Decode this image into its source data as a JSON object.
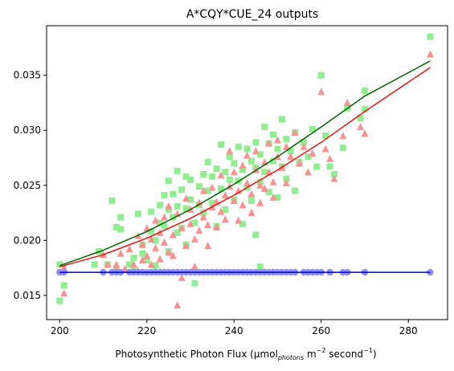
{
  "chart_data": {
    "type": "scatter",
    "title": "A*CQY*CUE_24 outputs",
    "xlabel": {
      "prefix": "Photosynthetic Photon Flux (μmol",
      "subscript": "photons",
      "middle": " m",
      "exponent1": "−2",
      "suffix": " second",
      "exponent2": "−1",
      "close": ")"
    },
    "ylabel": "",
    "xlim": [
      197,
      289
    ],
    "ylim": [
      0.0128,
      0.0395
    ],
    "xticks": [
      200,
      220,
      240,
      260,
      280
    ],
    "yticks": [
      0.015,
      0.02,
      0.025,
      0.03,
      0.035
    ],
    "ytick_labels": [
      "0.015",
      "0.020",
      "0.025",
      "0.030",
      "0.035"
    ],
    "grid": false,
    "series": [
      {
        "marker": "square",
        "color": "#90ee90",
        "points": [
          [
            200,
            0.0145
          ],
          [
            200,
            0.0178
          ],
          [
            201,
            0.0159
          ],
          [
            208,
            0.0178
          ],
          [
            209,
            0.019
          ],
          [
            211,
            0.0178
          ],
          [
            212,
            0.0236
          ],
          [
            213,
            0.0174
          ],
          [
            213,
            0.0212
          ],
          [
            214,
            0.0221
          ],
          [
            214,
            0.021
          ],
          [
            216,
            0.0178
          ],
          [
            217,
            0.0184
          ],
          [
            217,
            0.0172
          ],
          [
            218,
            0.0224
          ],
          [
            219,
            0.0188
          ],
          [
            219,
            0.0196
          ],
          [
            220,
            0.0182
          ],
          [
            221,
            0.0226
          ],
          [
            221,
            0.0208
          ],
          [
            222,
            0.02
          ],
          [
            222,
            0.0177
          ],
          [
            223,
            0.0232
          ],
          [
            223,
            0.0216
          ],
          [
            224,
            0.0241
          ],
          [
            224,
            0.0213
          ],
          [
            225,
            0.0254
          ],
          [
            225,
            0.0228
          ],
          [
            225,
            0.019
          ],
          [
            226,
            0.0242
          ],
          [
            226,
            0.0221
          ],
          [
            227,
            0.0263
          ],
          [
            227,
            0.0231
          ],
          [
            227,
            0.0207
          ],
          [
            228,
            0.0246
          ],
          [
            228,
            0.0211
          ],
          [
            229,
            0.0258
          ],
          [
            229,
            0.0229
          ],
          [
            229,
            0.0196
          ],
          [
            230,
            0.0237
          ],
          [
            230,
            0.0255
          ],
          [
            231,
            0.0216
          ],
          [
            231,
            0.0161
          ],
          [
            232,
            0.0249
          ],
          [
            232,
            0.0232
          ],
          [
            233,
            0.026
          ],
          [
            233,
            0.0225
          ],
          [
            234,
            0.0245
          ],
          [
            234,
            0.0271
          ],
          [
            235,
            0.0258
          ],
          [
            235,
            0.0234
          ],
          [
            236,
            0.0265
          ],
          [
            236,
            0.0213
          ],
          [
            237,
            0.0287
          ],
          [
            237,
            0.0247
          ],
          [
            238,
            0.0262
          ],
          [
            238,
            0.0228
          ],
          [
            239,
            0.0276
          ],
          [
            239,
            0.0255
          ],
          [
            240,
            0.027
          ],
          [
            240,
            0.0237
          ],
          [
            241,
            0.0285
          ],
          [
            241,
            0.0254
          ],
          [
            242,
            0.0264
          ],
          [
            242,
            0.0215
          ],
          [
            243,
            0.0283
          ],
          [
            243,
            0.0248
          ],
          [
            244,
            0.0272
          ],
          [
            244,
            0.0236
          ],
          [
            245,
            0.0289
          ],
          [
            245,
            0.0266
          ],
          [
            245,
            0.0205
          ],
          [
            246,
            0.0278
          ],
          [
            246,
            0.0253
          ],
          [
            246,
            0.0176
          ],
          [
            247,
            0.0303
          ],
          [
            247,
            0.0262
          ],
          [
            248,
            0.0288
          ],
          [
            248,
            0.0244
          ],
          [
            249,
            0.0272
          ],
          [
            249,
            0.0296
          ],
          [
            250,
            0.0283
          ],
          [
            250,
            0.0239
          ],
          [
            251,
            0.031
          ],
          [
            251,
            0.0267
          ],
          [
            252,
            0.0292
          ],
          [
            252,
            0.0256
          ],
          [
            253,
            0.0281
          ],
          [
            254,
            0.0298
          ],
          [
            254,
            0.0245
          ],
          [
            255,
            0.0271
          ],
          [
            256,
            0.0289
          ],
          [
            257,
            0.0276
          ],
          [
            258,
            0.0301
          ],
          [
            259,
            0.0267
          ],
          [
            260,
            0.035
          ],
          [
            261,
            0.0295
          ],
          [
            262,
            0.0267
          ],
          [
            263,
            0.026
          ],
          [
            265,
            0.0284
          ],
          [
            266,
            0.032
          ],
          [
            269,
            0.0311
          ],
          [
            270,
            0.0336
          ],
          [
            270,
            0.0319
          ],
          [
            285,
            0.0385
          ]
        ]
      },
      {
        "marker": "triangle",
        "color": "#f99191",
        "points": [
          [
            201,
            0.0152
          ],
          [
            201,
            0.0175
          ],
          [
            210,
            0.0187
          ],
          [
            211,
            0.0178
          ],
          [
            213,
            0.0174
          ],
          [
            213,
            0.0178
          ],
          [
            214,
            0.0188
          ],
          [
            215,
            0.0174
          ],
          [
            216,
            0.0192
          ],
          [
            217,
            0.0178
          ],
          [
            218,
            0.0204
          ],
          [
            218,
            0.0172
          ],
          [
            219,
            0.0182
          ],
          [
            219,
            0.0196
          ],
          [
            220,
            0.0186
          ],
          [
            220,
            0.0211
          ],
          [
            221,
            0.0201
          ],
          [
            221,
            0.0178
          ],
          [
            222,
            0.0218
          ],
          [
            222,
            0.0193
          ],
          [
            223,
            0.0207
          ],
          [
            223,
            0.0183
          ],
          [
            224,
            0.0221
          ],
          [
            224,
            0.0198
          ],
          [
            225,
            0.0189
          ],
          [
            225,
            0.0231
          ],
          [
            226,
            0.0205
          ],
          [
            226,
            0.0186
          ],
          [
            227,
            0.0141
          ],
          [
            227,
            0.0224
          ],
          [
            228,
            0.0211
          ],
          [
            228,
            0.0166
          ],
          [
            229,
            0.0238
          ],
          [
            229,
            0.0195
          ],
          [
            230,
            0.0215
          ],
          [
            230,
            0.0228
          ],
          [
            231,
            0.0201
          ],
          [
            231,
            0.0176
          ],
          [
            232,
            0.0234
          ],
          [
            232,
            0.0209
          ],
          [
            233,
            0.0221
          ],
          [
            233,
            0.0245
          ],
          [
            234,
            0.0214
          ],
          [
            234,
            0.0195
          ],
          [
            235,
            0.023
          ],
          [
            235,
            0.0248
          ],
          [
            236,
            0.0212
          ],
          [
            236,
            0.0235
          ],
          [
            237,
            0.0226
          ],
          [
            237,
            0.0259
          ],
          [
            238,
            0.0241
          ],
          [
            238,
            0.0219
          ],
          [
            239,
            0.0249
          ],
          [
            239,
            0.0281
          ],
          [
            240,
            0.0236
          ],
          [
            240,
            0.0262
          ],
          [
            241,
            0.0245
          ],
          [
            241,
            0.0218
          ],
          [
            242,
            0.0268
          ],
          [
            242,
            0.0232
          ],
          [
            243,
            0.0252
          ],
          [
            243,
            0.0277
          ],
          [
            244,
            0.0242
          ],
          [
            244,
            0.0225
          ],
          [
            245,
            0.0264
          ],
          [
            245,
            0.0281
          ],
          [
            246,
            0.025
          ],
          [
            246,
            0.0234
          ],
          [
            247,
            0.0271
          ],
          [
            247,
            0.0247
          ],
          [
            248,
            0.0288
          ],
          [
            248,
            0.0262
          ],
          [
            249,
            0.0253
          ],
          [
            249,
            0.0239
          ],
          [
            250,
            0.0276
          ],
          [
            250,
            0.0291
          ],
          [
            251,
            0.0266
          ],
          [
            252,
            0.0285
          ],
          [
            252,
            0.0252
          ],
          [
            253,
            0.0276
          ],
          [
            254,
            0.0298
          ],
          [
            255,
            0.027
          ],
          [
            256,
            0.0285
          ],
          [
            257,
            0.0262
          ],
          [
            258,
            0.0279
          ],
          [
            260,
            0.0335
          ],
          [
            261,
            0.0283
          ],
          [
            262,
            0.0274
          ],
          [
            263,
            0.0256
          ],
          [
            265,
            0.0295
          ],
          [
            266,
            0.0325
          ],
          [
            269,
            0.0303
          ],
          [
            270,
            0.0297
          ],
          [
            285,
            0.0369
          ]
        ]
      },
      {
        "marker": "circle",
        "color": "#8c8cfa",
        "points": [
          [
            200,
            0.0171
          ],
          [
            201,
            0.0171
          ],
          [
            210,
            0.0171
          ],
          [
            212,
            0.0171
          ],
          [
            213,
            0.0171
          ],
          [
            214,
            0.0171
          ],
          [
            216,
            0.0171
          ],
          [
            217,
            0.0171
          ],
          [
            218,
            0.0171
          ],
          [
            219,
            0.0171
          ],
          [
            220,
            0.0171
          ],
          [
            221,
            0.0171
          ],
          [
            222,
            0.0171
          ],
          [
            223,
            0.0171
          ],
          [
            224,
            0.0171
          ],
          [
            225,
            0.0171
          ],
          [
            226,
            0.0171
          ],
          [
            227,
            0.0171
          ],
          [
            228,
            0.0171
          ],
          [
            229,
            0.0171
          ],
          [
            230,
            0.0171
          ],
          [
            231,
            0.0171
          ],
          [
            232,
            0.0171
          ],
          [
            233,
            0.0171
          ],
          [
            234,
            0.0171
          ],
          [
            235,
            0.0171
          ],
          [
            236,
            0.0171
          ],
          [
            237,
            0.0171
          ],
          [
            238,
            0.0171
          ],
          [
            239,
            0.0171
          ],
          [
            240,
            0.0171
          ],
          [
            241,
            0.0171
          ],
          [
            242,
            0.0171
          ],
          [
            243,
            0.0171
          ],
          [
            244,
            0.0171
          ],
          [
            245,
            0.0171
          ],
          [
            246,
            0.0171
          ],
          [
            247,
            0.0171
          ],
          [
            248,
            0.0171
          ],
          [
            249,
            0.0171
          ],
          [
            250,
            0.0171
          ],
          [
            251,
            0.0171
          ],
          [
            252,
            0.0171
          ],
          [
            253,
            0.0171
          ],
          [
            254,
            0.0171
          ],
          [
            256,
            0.0171
          ],
          [
            257,
            0.0171
          ],
          [
            258,
            0.0171
          ],
          [
            259,
            0.0171
          ],
          [
            260,
            0.0171
          ],
          [
            262,
            0.0171
          ],
          [
            265,
            0.0171
          ],
          [
            266,
            0.0171
          ],
          [
            270,
            0.0171
          ],
          [
            285,
            0.0171
          ]
        ]
      }
    ],
    "fit_lines": [
      {
        "color": "#006400",
        "x": [
          200,
          210,
          220,
          230,
          240,
          250,
          260,
          270,
          285
        ],
        "y": [
          0.0177,
          0.0191,
          0.0208,
          0.0228,
          0.0251,
          0.0276,
          0.0303,
          0.0331,
          0.0363
        ]
      },
      {
        "color": "#ee1111",
        "x": [
          200,
          210,
          220,
          230,
          240,
          250,
          260,
          270,
          285
        ],
        "y": [
          0.0176,
          0.0187,
          0.0202,
          0.022,
          0.0241,
          0.0264,
          0.0289,
          0.0317,
          0.0357
        ]
      },
      {
        "color": "#0000cc",
        "x": [
          200,
          285
        ],
        "y": [
          0.0171,
          0.0171
        ]
      }
    ]
  }
}
